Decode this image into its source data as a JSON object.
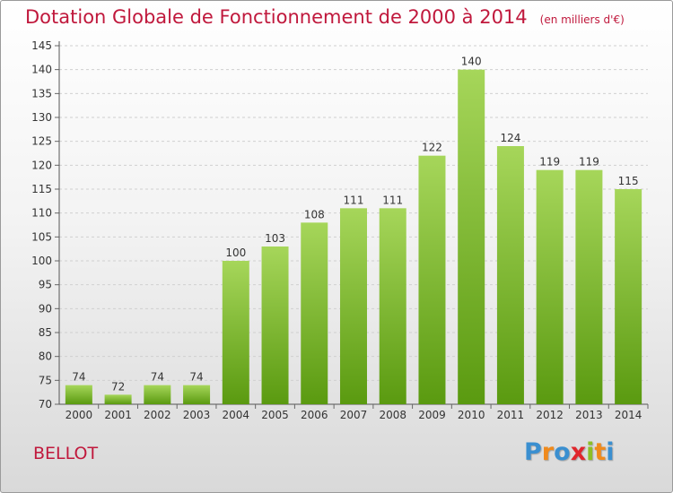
{
  "title": "Dotation Globale de Fonctionnement de 2000 à 2014",
  "unit": "(en milliers d'€)",
  "commune": "BELLOT",
  "logo": {
    "letters": [
      "P",
      "r",
      "o",
      "x",
      "i",
      "t",
      "i"
    ],
    "colors": [
      "#3a8fd0",
      "#f08a1c",
      "#3a8fd0",
      "#e0262c",
      "#8cbf26",
      "#f08a1c",
      "#3a8fd0"
    ]
  },
  "colors": {
    "bar_light": "#a6d65a",
    "bar_dark": "#5a9a10",
    "title": "#c0183c"
  },
  "chart_data": {
    "type": "bar",
    "title": "Dotation Globale de Fonctionnement de 2000 à 2014",
    "categories": [
      "2000",
      "2001",
      "2002",
      "2003",
      "2004",
      "2005",
      "2006",
      "2007",
      "2008",
      "2009",
      "2010",
      "2011",
      "2012",
      "2013",
      "2014"
    ],
    "values": [
      74,
      72,
      74,
      74,
      100,
      103,
      108,
      111,
      111,
      122,
      140,
      124,
      119,
      119,
      115
    ],
    "ylim": [
      70,
      145
    ],
    "yticks": [
      70,
      75,
      80,
      85,
      90,
      95,
      100,
      105,
      110,
      115,
      120,
      125,
      130,
      135,
      140,
      145
    ],
    "grid": true,
    "xlabel": "",
    "ylabel": ""
  }
}
